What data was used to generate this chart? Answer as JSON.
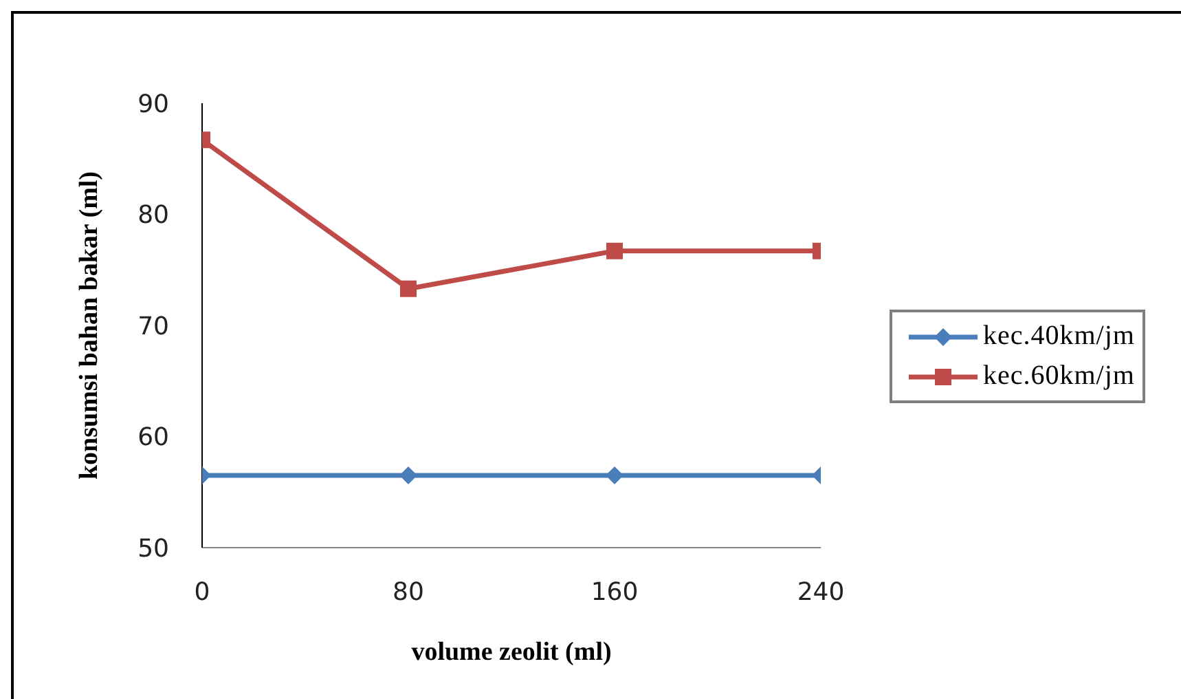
{
  "chart_data": {
    "type": "line",
    "xlabel": "volume zeolit (ml)",
    "ylabel": "konsumsi bahan bakar (ml)",
    "x": [
      0,
      80,
      160,
      240
    ],
    "series": [
      {
        "name": "kec.40km/jm",
        "color": "#4a7ebb",
        "marker": "diamond",
        "values": [
          56.5,
          56.5,
          56.5,
          56.5
        ]
      },
      {
        "name": "kec.60km/jm",
        "color": "#be4b48",
        "marker": "square",
        "values": [
          86.7,
          73.3,
          76.7,
          76.7
        ]
      }
    ],
    "xlim": [
      0,
      240
    ],
    "xticks": [
      0,
      80,
      160,
      240
    ],
    "ylim": [
      50,
      90
    ],
    "yticks": [
      50,
      60,
      70,
      80,
      90
    ],
    "legend": "right"
  }
}
